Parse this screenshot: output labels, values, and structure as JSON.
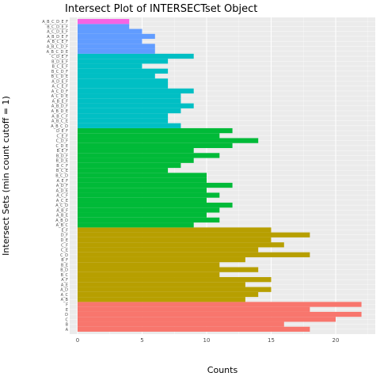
{
  "chart_data": {
    "type": "bar",
    "orientation": "horizontal",
    "title": "Intersect Plot of INTERSECTset Object",
    "xlabel": "Counts",
    "ylabel": "Intersect Sets (min count cutoff = 1)",
    "xlim": [
      0,
      22.5
    ],
    "x_ticks": [
      0,
      5,
      10,
      15,
      20
    ],
    "grid": true,
    "legend": "none",
    "group_colors": {
      "size1": "#F8766D",
      "size2": "#B79F00",
      "size3": "#00BA38",
      "size4": "#00BFC4",
      "size5": "#619CFF",
      "size6": "#F564E3"
    },
    "bars": [
      {
        "label": "A",
        "value": 18,
        "group": "size1"
      },
      {
        "label": "B",
        "value": 16,
        "group": "size1"
      },
      {
        "label": "C",
        "value": 20,
        "group": "size1"
      },
      {
        "label": "D",
        "value": 22,
        "group": "size1"
      },
      {
        "label": "E",
        "value": 18,
        "group": "size1"
      },
      {
        "label": "F",
        "value": 22,
        "group": "size1"
      },
      {
        "label": "A_B",
        "value": 13,
        "group": "size2"
      },
      {
        "label": "A_C",
        "value": 14,
        "group": "size2"
      },
      {
        "label": "A_D",
        "value": 15,
        "group": "size2"
      },
      {
        "label": "A_E",
        "value": 13,
        "group": "size2"
      },
      {
        "label": "A_F",
        "value": 15,
        "group": "size2"
      },
      {
        "label": "B_C",
        "value": 11,
        "group": "size2"
      },
      {
        "label": "B_D",
        "value": 14,
        "group": "size2"
      },
      {
        "label": "B_E",
        "value": 11,
        "group": "size2"
      },
      {
        "label": "B_F",
        "value": 13,
        "group": "size2"
      },
      {
        "label": "C_D",
        "value": 18,
        "group": "size2"
      },
      {
        "label": "C_E",
        "value": 14,
        "group": "size2"
      },
      {
        "label": "C_F",
        "value": 16,
        "group": "size2"
      },
      {
        "label": "D_E",
        "value": 15,
        "group": "size2"
      },
      {
        "label": "D_F",
        "value": 18,
        "group": "size2"
      },
      {
        "label": "E_F",
        "value": 15,
        "group": "size2"
      },
      {
        "label": "A_B_C",
        "value": 9,
        "group": "size3"
      },
      {
        "label": "A_B_D",
        "value": 11,
        "group": "size3"
      },
      {
        "label": "A_B_E",
        "value": 10,
        "group": "size3"
      },
      {
        "label": "A_B_F",
        "value": 11,
        "group": "size3"
      },
      {
        "label": "A_C_D",
        "value": 12,
        "group": "size3"
      },
      {
        "label": "A_C_E",
        "value": 10,
        "group": "size3"
      },
      {
        "label": "A_C_F",
        "value": 11,
        "group": "size3"
      },
      {
        "label": "A_D_E",
        "value": 10,
        "group": "size3"
      },
      {
        "label": "A_D_F",
        "value": 12,
        "group": "size3"
      },
      {
        "label": "A_E_F",
        "value": 10,
        "group": "size3"
      },
      {
        "label": "B_C_D",
        "value": 10,
        "group": "size3"
      },
      {
        "label": "B_C_E",
        "value": 7,
        "group": "size3"
      },
      {
        "label": "B_C_F",
        "value": 8,
        "group": "size3"
      },
      {
        "label": "B_D_E",
        "value": 9,
        "group": "size3"
      },
      {
        "label": "B_D_F",
        "value": 11,
        "group": "size3"
      },
      {
        "label": "B_E_F",
        "value": 9,
        "group": "size3"
      },
      {
        "label": "C_D_E",
        "value": 12,
        "group": "size3"
      },
      {
        "label": "C_D_F",
        "value": 14,
        "group": "size3"
      },
      {
        "label": "C_E_F",
        "value": 11,
        "group": "size3"
      },
      {
        "label": "D_E_F",
        "value": 12,
        "group": "size3"
      },
      {
        "label": "A_B_C_D",
        "value": 8,
        "group": "size4"
      },
      {
        "label": "A_B_C_E",
        "value": 7,
        "group": "size4"
      },
      {
        "label": "A_B_C_F",
        "value": 7,
        "group": "size4"
      },
      {
        "label": "A_B_D_E",
        "value": 8,
        "group": "size4"
      },
      {
        "label": "A_B_D_F",
        "value": 9,
        "group": "size4"
      },
      {
        "label": "A_B_E_F",
        "value": 8,
        "group": "size4"
      },
      {
        "label": "A_C_D_E",
        "value": 8,
        "group": "size4"
      },
      {
        "label": "A_C_D_F",
        "value": 9,
        "group": "size4"
      },
      {
        "label": "A_C_E_F",
        "value": 7,
        "group": "size4"
      },
      {
        "label": "A_D_E_F",
        "value": 7,
        "group": "size4"
      },
      {
        "label": "B_C_D_E",
        "value": 6,
        "group": "size4"
      },
      {
        "label": "B_C_D_F",
        "value": 7,
        "group": "size4"
      },
      {
        "label": "B_C_E_F",
        "value": 5,
        "group": "size4"
      },
      {
        "label": "B_D_E_F",
        "value": 7,
        "group": "size4"
      },
      {
        "label": "C_D_E_F",
        "value": 9,
        "group": "size4"
      },
      {
        "label": "A_B_C_D_E",
        "value": 6,
        "group": "size5"
      },
      {
        "label": "A_B_C_D_F",
        "value": 6,
        "group": "size5"
      },
      {
        "label": "A_B_C_E_F",
        "value": 5,
        "group": "size5"
      },
      {
        "label": "A_B_D_E_F",
        "value": 6,
        "group": "size5"
      },
      {
        "label": "A_C_D_E_F",
        "value": 5,
        "group": "size5"
      },
      {
        "label": "B_C_D_E_F",
        "value": 4,
        "group": "size5"
      },
      {
        "label": "A_B_C_D_E_F",
        "value": 4,
        "group": "size6"
      }
    ]
  }
}
